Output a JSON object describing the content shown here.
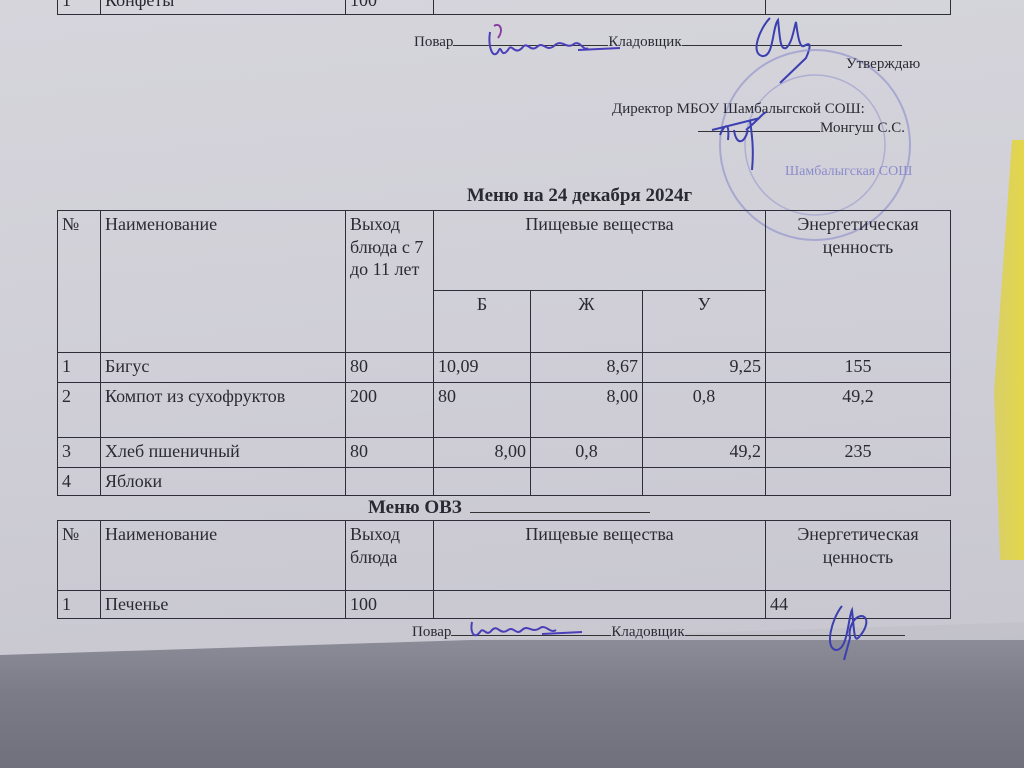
{
  "previous_table": {
    "row": {
      "num": "1",
      "name": "Конфеты",
      "output": "100"
    }
  },
  "signatures_top": {
    "cook_label": "Повар",
    "storekeeper_label": "Кладовщик"
  },
  "approval": {
    "approve_label": "Утверждаю",
    "director_label": "Директор МБОУ Шамбалыгской СОШ:",
    "director_name": "Монгуш С.С.",
    "stamp_text": "Шамбалыгская СОШ"
  },
  "main_menu": {
    "title": "Меню на 24 декабря 2024г",
    "headers": {
      "num": "№",
      "name": "Наименование",
      "output": "Выход блюда с 7 до 11 лет",
      "nutrients": "Пищевые вещества",
      "protein": "Б",
      "fat": "Ж",
      "carbs": "У",
      "energy": "Энергетическая ценность"
    },
    "rows": [
      {
        "num": "1",
        "name": "Бигус",
        "output": "80",
        "protein": "10,09",
        "fat": "8,67",
        "carbs": "9,25",
        "energy": "155"
      },
      {
        "num": "2",
        "name": "Компот из сухофруктов",
        "output": "200",
        "protein": "80",
        "fat": "8,00",
        "carbs": "0,8",
        "energy": "49,2"
      },
      {
        "num": "3",
        "name": "Хлеб пшеничный",
        "output": "80",
        "protein": "8,00",
        "fat": "0,8",
        "carbs": "49,2",
        "energy": "235"
      },
      {
        "num": "4",
        "name": "Яблоки",
        "output": "",
        "protein": "",
        "fat": "",
        "carbs": "",
        "energy": ""
      }
    ]
  },
  "ovz_menu": {
    "title": "Меню  ОВЗ",
    "headers": {
      "num": "№",
      "name": "Наименование",
      "output": "Выход блюда",
      "nutrients": "Пищевые вещества",
      "energy": "Энергетическая ценность"
    },
    "rows": [
      {
        "num": "1",
        "name": "Печенье",
        "output": "100",
        "nutrients": "",
        "energy": "44"
      }
    ]
  },
  "signatures_bottom": {
    "cook_label": "Повар",
    "storekeeper_label": "Кладовщик"
  },
  "colors": {
    "ink_signature": "#3b3fb0",
    "stamp": "#8a8ccc",
    "paper": "#d0cfd7"
  }
}
